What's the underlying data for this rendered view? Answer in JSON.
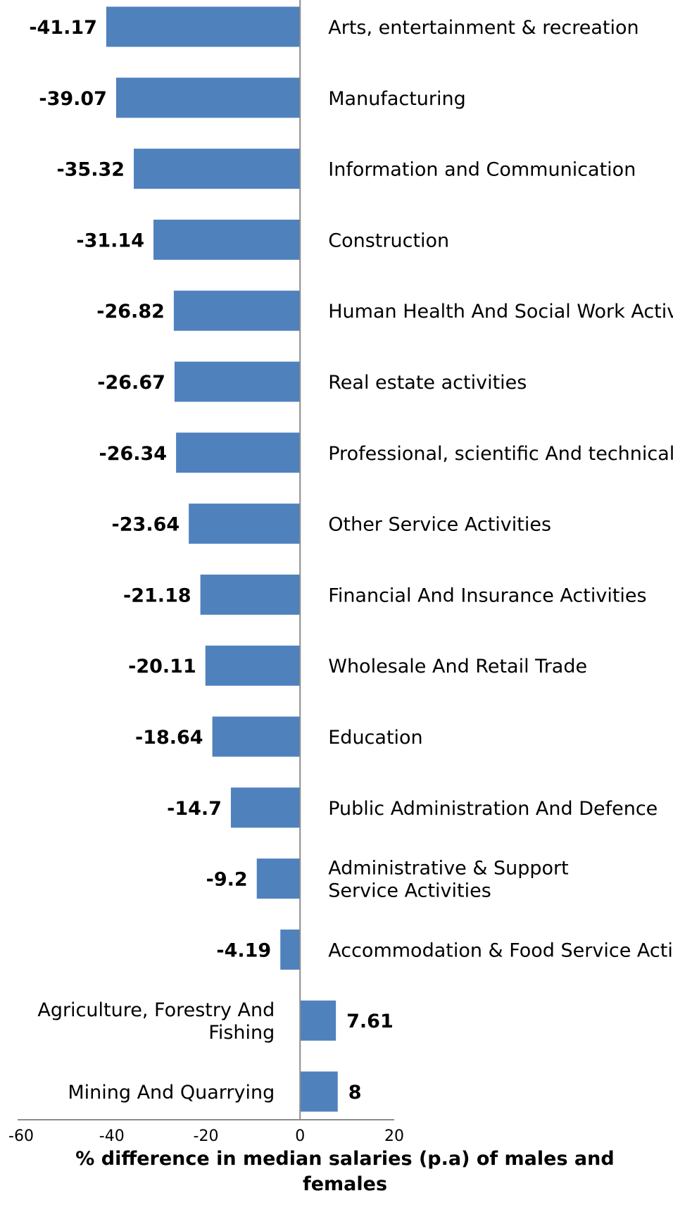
{
  "chart_data": {
    "type": "bar",
    "orientation": "horizontal",
    "categories": [
      "Arts, entertainment & recreation",
      "Manufacturing",
      "Information and Communication",
      "Construction",
      "Human Health And Social Work Activities",
      "Real estate activities",
      "Professional, scientific And technical",
      "Other Service Activities",
      "Financial And Insurance Activities",
      "Wholesale And Retail Trade",
      "Education",
      "Public Administration And Defence",
      "Administrative & Support Service Activities",
      "Accommodation & Food Service Activities",
      "Agriculture, Forestry And Fishing",
      "Mining And Quarrying"
    ],
    "values": [
      -41.17,
      -39.07,
      -35.32,
      -31.14,
      -26.82,
      -26.67,
      -26.34,
      -23.64,
      -21.18,
      -20.11,
      -18.64,
      -14.7,
      -9.2,
      -4.19,
      7.61,
      8
    ],
    "value_labels": [
      "-41.17",
      "-39.07",
      "-35.32",
      "-31.14",
      "-26.82",
      "-26.67",
      "-26.34",
      "-23.64",
      "-21.18",
      "-20.11",
      "-18.64",
      "-14.7",
      "-9.2",
      "-4.19",
      "7.61",
      "8"
    ],
    "xlim": [
      -60,
      20
    ],
    "xticks": [
      -60,
      -40,
      -20,
      0,
      20
    ],
    "xtick_labels": [
      "-60",
      "-40",
      "-20",
      "0",
      "20"
    ],
    "xlabel": "% difference in median salaries (p.a) of males and females",
    "xlabel_lines": [
      "% difference in median salaries (p.a) of males and",
      "females"
    ],
    "bar_color": "#4F81BD",
    "grid": false,
    "legend": "none"
  }
}
